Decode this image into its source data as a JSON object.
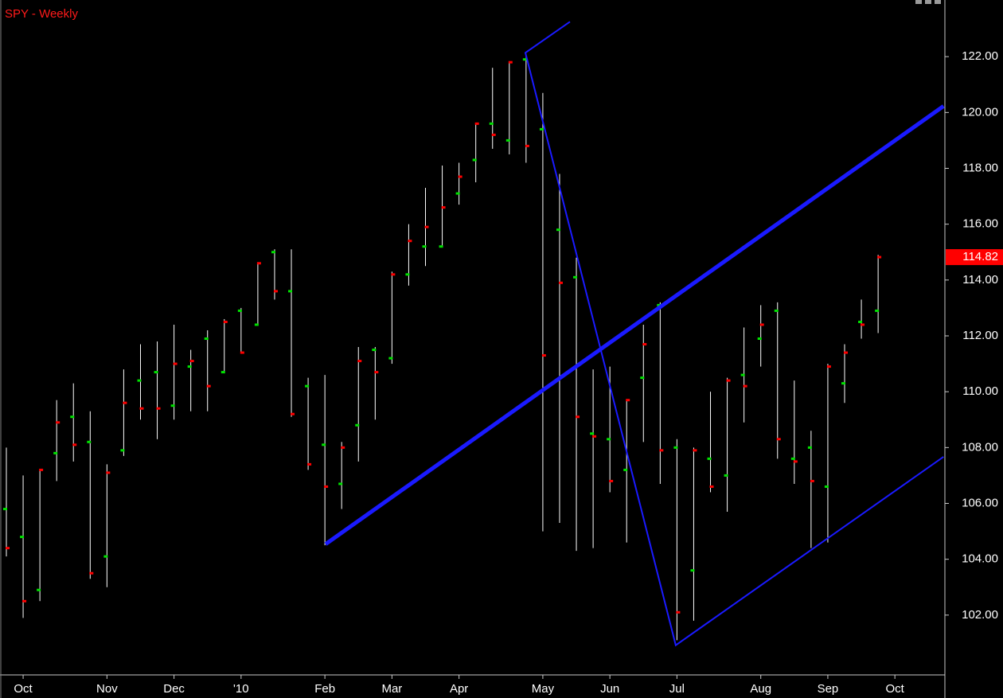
{
  "chart_data": {
    "type": "ohlc",
    "title": "SPY - Weekly",
    "categories": [
      null,
      "Oct",
      null,
      null,
      null,
      null,
      "Nov",
      null,
      null,
      null,
      "Dec",
      null,
      null,
      null,
      "'10",
      null,
      null,
      null,
      null,
      "Feb",
      null,
      null,
      null,
      "Mar",
      null,
      null,
      null,
      "Apr",
      null,
      null,
      null,
      null,
      "May",
      null,
      null,
      null,
      "Jun",
      null,
      null,
      null,
      "Jul",
      null,
      null,
      null,
      null,
      "Aug",
      null,
      null,
      null,
      "Sep",
      null,
      null,
      null,
      "Oct"
    ],
    "open": [
      105.8,
      104.8,
      102.9,
      107.8,
      109.1,
      108.2,
      104.1,
      107.9,
      110.4,
      110.7,
      109.5,
      110.9,
      111.9,
      110.7,
      112.9,
      112.4,
      115.0,
      113.6,
      110.2,
      108.1,
      106.7,
      108.8,
      111.5,
      111.2,
      114.2,
      115.2,
      115.2,
      117.1,
      118.3,
      119.6,
      119.0,
      121.9,
      119.4,
      115.8,
      114.1,
      108.5,
      108.3,
      107.2,
      110.5,
      113.1,
      108.0,
      103.6,
      107.6,
      107.0,
      110.6,
      111.9,
      112.9,
      107.6,
      108.0,
      106.6,
      110.3,
      112.5,
      112.9,
      null
    ],
    "high": [
      108.0,
      107.0,
      107.2,
      109.7,
      110.3,
      109.3,
      107.4,
      110.8,
      111.7,
      111.8,
      112.4,
      111.5,
      112.2,
      112.6,
      113.0,
      114.6,
      115.1,
      115.1,
      110.5,
      110.6,
      108.2,
      111.6,
      111.6,
      114.3,
      116.0,
      117.3,
      118.1,
      118.2,
      119.6,
      121.6,
      121.8,
      122.1,
      120.7,
      117.8,
      114.8,
      110.8,
      110.9,
      109.7,
      112.4,
      113.2,
      108.3,
      108.0,
      110.0,
      110.5,
      112.3,
      113.1,
      113.2,
      110.4,
      108.6,
      111.0,
      111.7,
      113.3,
      114.9,
      null
    ],
    "low": [
      104.1,
      101.9,
      102.5,
      106.8,
      107.5,
      103.3,
      103.0,
      107.7,
      109.0,
      108.3,
      109.0,
      109.3,
      109.3,
      110.7,
      111.4,
      112.4,
      113.3,
      109.1,
      107.2,
      104.5,
      105.8,
      107.5,
      109.0,
      111.0,
      113.8,
      114.5,
      115.2,
      116.7,
      117.5,
      118.7,
      118.5,
      118.2,
      105.0,
      105.3,
      104.3,
      104.4,
      106.4,
      104.6,
      108.2,
      106.7,
      101.1,
      101.8,
      106.4,
      105.7,
      108.9,
      110.9,
      107.6,
      106.7,
      104.4,
      104.6,
      109.6,
      111.9,
      112.1,
      null
    ],
    "close": [
      104.4,
      102.5,
      107.2,
      108.9,
      108.1,
      103.5,
      107.1,
      109.6,
      109.4,
      109.4,
      111.0,
      111.1,
      110.2,
      112.5,
      111.4,
      114.6,
      113.6,
      109.2,
      107.4,
      106.6,
      108.0,
      111.1,
      110.7,
      114.2,
      115.4,
      115.9,
      116.6,
      117.7,
      119.6,
      119.2,
      121.8,
      118.8,
      111.3,
      113.9,
      109.1,
      108.4,
      106.8,
      109.7,
      111.7,
      107.9,
      102.1,
      107.9,
      106.6,
      110.4,
      110.2,
      112.4,
      108.3,
      107.5,
      106.8,
      110.9,
      111.4,
      112.4,
      114.82,
      null
    ],
    "colors": {
      "open": "#00e000",
      "close": "#ff0000",
      "range": "#ffffff"
    },
    "last_price": 114.82,
    "ylim": [
      100,
      124
    ],
    "yticks": [
      {
        "value": 102,
        "label": "102.00"
      },
      {
        "value": 104,
        "label": "104.00"
      },
      {
        "value": 106,
        "label": "106.00"
      },
      {
        "value": 108,
        "label": "108.00"
      },
      {
        "value": 110,
        "label": "110.00"
      },
      {
        "value": 112,
        "label": "112.00"
      },
      {
        "value": 114,
        "label": "114.00"
      },
      {
        "value": 116,
        "label": "116.00"
      },
      {
        "value": 118,
        "label": "118.00"
      },
      {
        "value": 120,
        "label": "120.00"
      },
      {
        "value": 122,
        "label": "122.00"
      }
    ],
    "trend_lines": [
      {
        "color": "#1a1aff",
        "width": 5,
        "points": [
          [
            19.04,
            104.54
          ],
          [
            55.9,
            120.23
          ]
        ]
      },
      {
        "color": "#1a1aff",
        "width": 2,
        "points": [
          [
            33.62,
            123.25
          ],
          [
            30.96,
            122.14
          ],
          [
            39.93,
            100.92
          ],
          [
            55.9,
            107.67
          ]
        ]
      }
    ]
  }
}
